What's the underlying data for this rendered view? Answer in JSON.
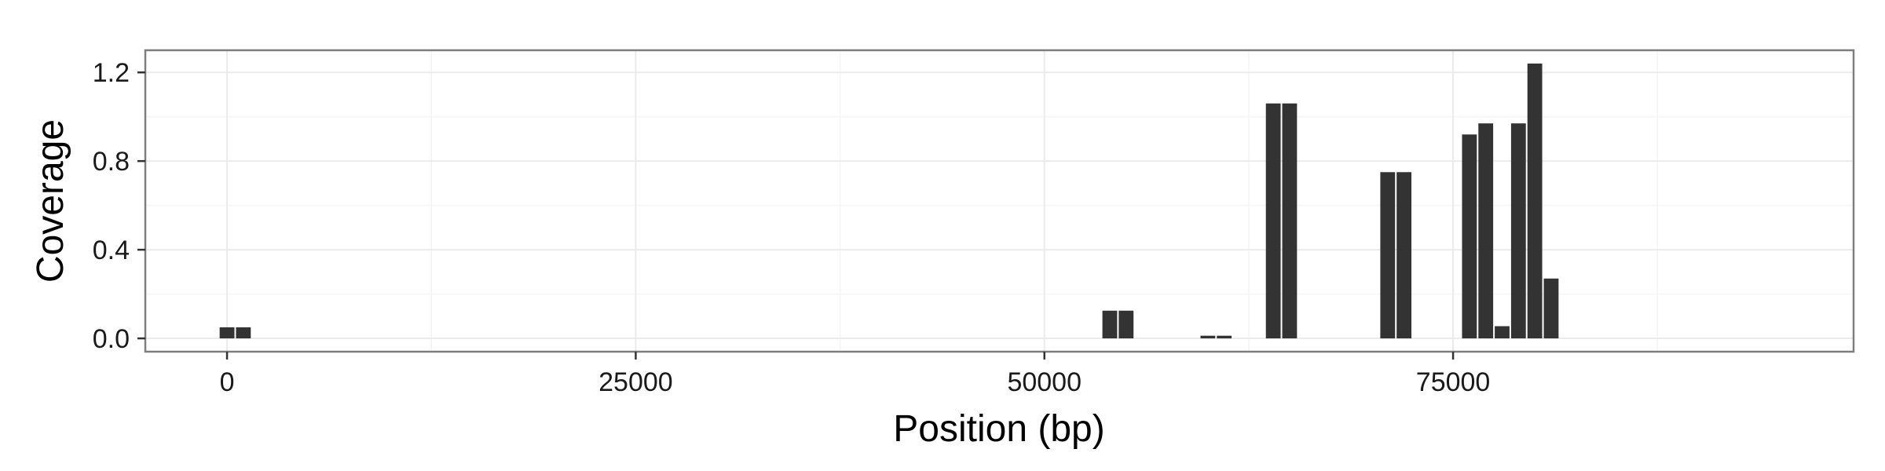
{
  "chart_data": {
    "type": "bar",
    "title": "",
    "xlabel": "Position (bp)",
    "ylabel": "Coverage",
    "xlim": [
      -5000,
      99500
    ],
    "ylim": [
      -0.06,
      1.3
    ],
    "x_ticks": [
      0,
      25000,
      50000,
      75000
    ],
    "y_ticks": [
      0.0,
      0.4,
      0.8,
      1.2
    ],
    "x_tick_labels": [
      "0",
      "25000",
      "50000",
      "75000"
    ],
    "y_tick_labels": [
      "0.0",
      "0.4",
      "0.8",
      "1.2"
    ],
    "bin_width": 1000,
    "grid": true,
    "legend": "none",
    "bar_color": "#333333",
    "x": [
      0,
      1000,
      54000,
      55000,
      60000,
      61000,
      64000,
      65000,
      71000,
      72000,
      76000,
      77000,
      78000,
      79000,
      80000,
      81000
    ],
    "values": [
      0.05,
      0.05,
      0.125,
      0.125,
      0.012,
      0.012,
      1.06,
      1.06,
      0.75,
      0.75,
      0.92,
      0.97,
      0.055,
      0.97,
      1.24,
      0.27
    ]
  }
}
